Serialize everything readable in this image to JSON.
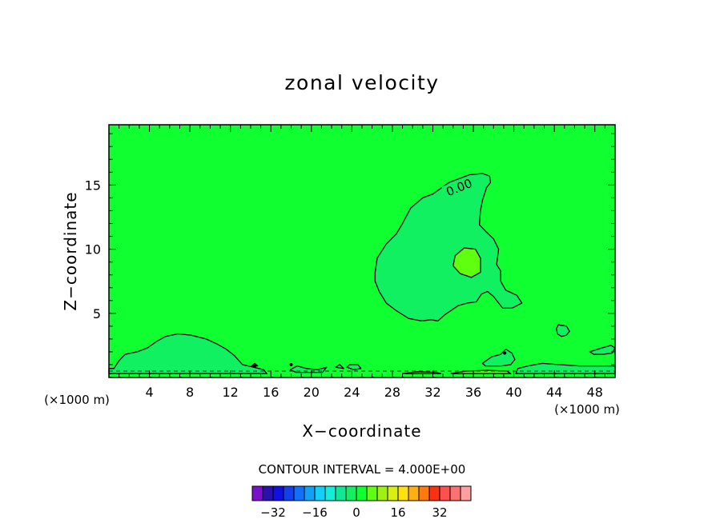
{
  "chart_data": {
    "type": "heatmap",
    "title": "zonal velocity",
    "xlabel": "X−coordinate",
    "ylabel": "Z−coordinate",
    "x_unit_left": "(×1000 m)",
    "x_unit_right": "(×1000 m)",
    "xlim": [
      0,
      50
    ],
    "ylim": [
      0,
      19.7
    ],
    "x_ticks": [
      4,
      8,
      12,
      16,
      20,
      24,
      28,
      32,
      36,
      40,
      44,
      48
    ],
    "x_tick_labels": [
      "4",
      "8",
      "12",
      "16",
      "20",
      "24",
      "28",
      "32",
      "36",
      "40",
      "44",
      "48"
    ],
    "y_ticks": [
      5,
      10,
      15
    ],
    "y_tick_labels": [
      "5",
      "10",
      "15"
    ],
    "contour_label": "0.00",
    "contour_interval_text": "CONTOUR INTERVAL = 4.000E+00",
    "colorbar": {
      "colors": [
        "#7a10c8",
        "#2a10b0",
        "#1010e0",
        "#1040f0",
        "#1070f8",
        "#10a0f8",
        "#10d0f8",
        "#10f0d8",
        "#10e898",
        "#10f060",
        "#10ff30",
        "#60ff10",
        "#a0f010",
        "#d8f010",
        "#ffe010",
        "#ffb010",
        "#ff7810",
        "#ff3010",
        "#ff5050",
        "#ff7070",
        "#ffa0a0"
      ],
      "ticks": [
        -32,
        -16,
        0,
        16,
        32
      ],
      "tick_labels": [
        "−32",
        "−16",
        "0",
        "16",
        "32"
      ]
    },
    "field_colors": {
      "background": "#10ff30",
      "negative_region": "#10f060",
      "positive_region": "#60ff10"
    },
    "contour_regions": [
      {
        "sign": "negative",
        "points": [
          [
            26.3,
            8.2
          ],
          [
            26.5,
            9.3
          ],
          [
            27.4,
            10.4
          ],
          [
            28.4,
            11.2
          ],
          [
            29,
            12
          ],
          [
            29.8,
            13.2
          ],
          [
            31,
            14
          ],
          [
            32,
            14.3
          ],
          [
            33.6,
            15.2
          ],
          [
            35.6,
            15.8
          ],
          [
            36.9,
            15.9
          ],
          [
            37.6,
            15.7
          ],
          [
            37.7,
            15.2
          ],
          [
            37.3,
            14.8
          ],
          [
            36.9,
            13.8
          ],
          [
            36.7,
            13
          ],
          [
            36.6,
            11.9
          ],
          [
            37.2,
            11.4
          ],
          [
            38,
            10.8
          ],
          [
            38.5,
            10
          ],
          [
            38.3,
            8.8
          ],
          [
            38.7,
            8.3
          ],
          [
            38.7,
            7.5
          ],
          [
            39.2,
            6.8
          ],
          [
            40.3,
            6.4
          ],
          [
            40.8,
            5.8
          ],
          [
            39.8,
            5.4
          ],
          [
            38.9,
            5.4
          ],
          [
            38,
            6.3
          ],
          [
            37.4,
            6.7
          ],
          [
            36.8,
            6.5
          ],
          [
            36.3,
            5.9
          ],
          [
            35.4,
            5.8
          ],
          [
            34.5,
            5.6
          ],
          [
            33.2,
            4.9
          ],
          [
            32.5,
            4.4
          ],
          [
            31.8,
            4.5
          ],
          [
            30.9,
            4.4
          ],
          [
            29.6,
            4.6
          ],
          [
            28.4,
            5.2
          ],
          [
            27.4,
            5.8
          ],
          [
            26.7,
            6.7
          ],
          [
            26.3,
            7.5
          ]
        ]
      },
      {
        "sign": "negative",
        "points": [
          [
            0,
            0.7
          ],
          [
            0.5,
            0.7
          ],
          [
            1,
            1.3
          ],
          [
            1.6,
            1.8
          ],
          [
            2.8,
            2
          ],
          [
            3.8,
            2.3
          ],
          [
            4.7,
            2.8
          ],
          [
            5.6,
            3.2
          ],
          [
            6.8,
            3.4
          ],
          [
            8.1,
            3.3
          ],
          [
            9.6,
            3.0
          ],
          [
            10.7,
            2.6
          ],
          [
            11.6,
            2.2
          ],
          [
            12.4,
            1.7
          ],
          [
            13.2,
            1.0
          ],
          [
            14.3,
            0.8
          ],
          [
            15.3,
            0.6
          ],
          [
            15.6,
            0.3
          ],
          [
            0,
            0.3
          ]
        ]
      },
      {
        "sign": "negative",
        "points": [
          [
            40.2,
            0.3
          ],
          [
            40.4,
            0.7
          ],
          [
            41.4,
            0.9
          ],
          [
            42.8,
            1.1
          ],
          [
            44.5,
            1.0
          ],
          [
            46.5,
            0.9
          ],
          [
            48.5,
            0.9
          ],
          [
            50,
            0.9
          ],
          [
            50,
            0.3
          ]
        ]
      },
      {
        "sign": "negative",
        "points": [
          [
            36.9,
            1.1
          ],
          [
            37.8,
            1.6
          ],
          [
            38.7,
            1.8
          ],
          [
            39.2,
            2.2
          ],
          [
            39.8,
            1.9
          ],
          [
            40.1,
            1.4
          ],
          [
            39.7,
            1.0
          ],
          [
            38.8,
            0.9
          ],
          [
            37.9,
            0.9
          ],
          [
            37.2,
            0.9
          ]
        ]
      },
      {
        "sign": "negative",
        "points": [
          [
            47.5,
            2.0
          ],
          [
            48.7,
            2.3
          ],
          [
            49.6,
            2.5
          ],
          [
            50,
            2.3
          ],
          [
            49.7,
            1.9
          ],
          [
            48.8,
            1.8
          ],
          [
            47.9,
            1.8
          ]
        ]
      },
      {
        "sign": "negative",
        "points": [
          [
            44.2,
            3.8
          ],
          [
            44.4,
            4.1
          ],
          [
            45.2,
            4.0
          ],
          [
            45.5,
            3.6
          ],
          [
            45.2,
            3.3
          ],
          [
            44.7,
            3.2
          ],
          [
            44.3,
            3.4
          ]
        ]
      },
      {
        "sign": "negative",
        "points": [
          [
            17.9,
            0.6
          ],
          [
            18.6,
            0.9
          ],
          [
            19.5,
            0.7
          ],
          [
            20.6,
            0.6
          ],
          [
            21.5,
            0.8
          ],
          [
            21.1,
            0.4
          ],
          [
            19.6,
            0.4
          ],
          [
            18.5,
            0.4
          ]
        ]
      },
      {
        "sign": "negative",
        "points": [
          [
            23.5,
            0.8
          ],
          [
            23.8,
            1.0
          ],
          [
            24.6,
            1.0
          ],
          [
            24.9,
            0.7
          ],
          [
            24.2,
            0.6
          ]
        ]
      },
      {
        "sign": "negative",
        "points": [
          [
            22.4,
            0.8
          ],
          [
            22.8,
            1.0
          ],
          [
            23.2,
            0.7
          ]
        ]
      },
      {
        "sign": "negative",
        "points": [
          [
            14.1,
            0.9
          ],
          [
            14.4,
            1.1
          ],
          [
            14.7,
            0.9
          ]
        ]
      },
      {
        "sign": "positive",
        "points": [
          [
            34,
            8.7
          ],
          [
            34.2,
            9.5
          ],
          [
            35.1,
            10.1
          ],
          [
            36.2,
            10.0
          ],
          [
            36.7,
            9.3
          ],
          [
            36.7,
            8.2
          ],
          [
            35.8,
            7.8
          ],
          [
            34.7,
            8.1
          ]
        ]
      },
      {
        "sign": "positive",
        "points": [
          [
            29,
            0.3
          ],
          [
            30.5,
            0.45
          ],
          [
            32.3,
            0.4
          ],
          [
            32.8,
            0.3
          ]
        ]
      },
      {
        "sign": "positive",
        "points": [
          [
            33.8,
            0.3
          ],
          [
            35.3,
            0.5
          ],
          [
            37.4,
            0.55
          ],
          [
            39.3,
            0.5
          ],
          [
            39.7,
            0.3
          ]
        ]
      }
    ],
    "dashed_contour": [
      [
        0,
        0.5
      ],
      [
        50,
        0.5
      ]
    ],
    "point_markers": [
      [
        39.1,
        1.9
      ],
      [
        14.4,
        0.9
      ],
      [
        18.0,
        1.0
      ]
    ],
    "label_position": [
      34.6,
      14.8
    ],
    "label_angle_deg": -22
  }
}
